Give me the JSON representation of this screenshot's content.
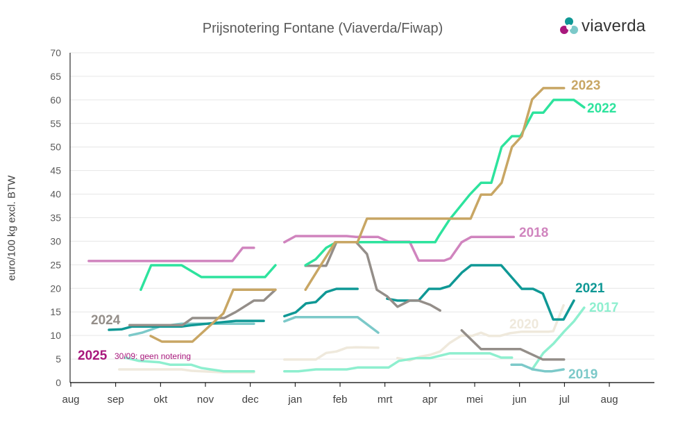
{
  "chart_data": {
    "type": "line",
    "title": "Prijsnotering Fontane (Viaverda/Fiwap)",
    "ylabel": "euro/100 kg excl. BTW",
    "xlabel": "",
    "ylim": [
      0,
      70
    ],
    "yticks": [
      "0",
      "5",
      "10",
      "15",
      "20",
      "25",
      "30",
      "35",
      "40",
      "45",
      "50",
      "55",
      "60",
      "65",
      "70"
    ],
    "x_unit": "months since August",
    "xlim": [
      0,
      13
    ],
    "xticks": [
      "aug",
      "sep",
      "okt",
      "nov",
      "dec",
      "jan",
      "feb",
      "mrt",
      "apr",
      "mei",
      "jun",
      "jul",
      "aug"
    ],
    "grid": true,
    "series": [
      {
        "name": "2018",
        "color": "#d084be",
        "segments": [
          [
            [
              0.4,
              25.8
            ],
            [
              3.6,
              25.8
            ],
            [
              3.83,
              28.6
            ],
            [
              4.08,
              28.6
            ]
          ],
          [
            [
              4.76,
              29.8
            ],
            [
              5.01,
              31.1
            ],
            [
              6.15,
              31.1
            ],
            [
              6.36,
              30.9
            ],
            [
              6.85,
              30.9
            ],
            [
              7.08,
              29.9
            ],
            [
              7.55,
              29.9
            ],
            [
              7.75,
              25.9
            ],
            [
              8.32,
              25.9
            ],
            [
              8.46,
              26.4
            ],
            [
              8.71,
              29.8
            ],
            [
              8.92,
              30.9
            ],
            [
              9.87,
              30.9
            ]
          ]
        ]
      },
      {
        "name": "2020",
        "color": "#efe9dc",
        "segments": [
          [
            [
              1.08,
              2.8
            ],
            [
              2.47,
              2.8
            ],
            [
              2.69,
              2.5
            ],
            [
              3.37,
              2.2
            ],
            [
              4.08,
              2.2
            ]
          ],
          [
            [
              4.76,
              4.9
            ],
            [
              5.46,
              4.9
            ],
            [
              5.69,
              6.3
            ],
            [
              5.92,
              6.6
            ],
            [
              6.15,
              7.4
            ],
            [
              6.36,
              7.5
            ],
            [
              6.85,
              7.4
            ]
          ],
          [
            [
              7.28,
              5.2
            ],
            [
              7.55,
              4.7
            ],
            [
              7.78,
              5.5
            ],
            [
              8.01,
              5.9
            ],
            [
              8.23,
              6.6
            ],
            [
              8.44,
              8.4
            ],
            [
              8.71,
              10.0
            ],
            [
              8.94,
              9.9
            ],
            [
              9.14,
              10.6
            ],
            [
              9.32,
              9.9
            ],
            [
              9.56,
              9.9
            ],
            [
              9.79,
              10.5
            ],
            [
              10.05,
              10.8
            ],
            [
              10.64,
              10.8
            ],
            [
              10.75,
              10.9
            ],
            [
              10.98,
              16.4
            ]
          ]
        ]
      },
      {
        "name": "2017",
        "color": "#8eefcf",
        "segments": [
          [
            [
              1.21,
              5.3
            ],
            [
              1.52,
              4.6
            ],
            [
              1.98,
              4.3
            ],
            [
              2.21,
              3.8
            ],
            [
              2.68,
              3.8
            ],
            [
              2.91,
              3.1
            ],
            [
              3.4,
              2.4
            ],
            [
              4.08,
              2.4
            ]
          ],
          [
            [
              4.76,
              2.4
            ],
            [
              5.07,
              2.4
            ],
            [
              5.46,
              2.8
            ],
            [
              6.15,
              2.8
            ],
            [
              6.39,
              3.2
            ],
            [
              7.08,
              3.2
            ],
            [
              7.31,
              4.6
            ],
            [
              7.7,
              5.2
            ],
            [
              8.01,
              5.2
            ],
            [
              8.44,
              6.2
            ],
            [
              9.34,
              6.2
            ],
            [
              9.59,
              5.3
            ],
            [
              9.83,
              5.3
            ]
          ],
          [
            [
              10.28,
              2.8
            ],
            [
              10.53,
              6.3
            ],
            [
              10.76,
              8.3
            ],
            [
              10.99,
              10.8
            ],
            [
              11.21,
              13.0
            ],
            [
              11.44,
              15.9
            ]
          ]
        ]
      },
      {
        "name": "2019",
        "color": "#7cc9c9",
        "segments": [
          [
            [
              1.31,
              10.0
            ],
            [
              1.59,
              10.6
            ],
            [
              1.98,
              11.9
            ],
            [
              2.47,
              12.5
            ],
            [
              4.08,
              12.5
            ]
          ],
          [
            [
              4.76,
              13.0
            ],
            [
              5.01,
              13.9
            ],
            [
              6.39,
              13.9
            ],
            [
              6.85,
              10.6
            ]
          ],
          [
            [
              9.82,
              3.8
            ],
            [
              10.05,
              3.8
            ],
            [
              10.3,
              2.8
            ],
            [
              10.56,
              2.4
            ],
            [
              10.72,
              2.4
            ],
            [
              10.98,
              2.8
            ]
          ]
        ]
      },
      {
        "name": "2021",
        "color": "#0f9895",
        "segments": [
          [
            [
              0.85,
              11.2
            ],
            [
              1.13,
              11.3
            ],
            [
              1.36,
              11.9
            ],
            [
              2.47,
              11.9
            ],
            [
              2.71,
              12.2
            ],
            [
              3.68,
              13.1
            ],
            [
              4.3,
              13.1
            ]
          ],
          [
            [
              4.76,
              14.1
            ],
            [
              5.01,
              14.9
            ],
            [
              5.24,
              16.8
            ],
            [
              5.46,
              17.1
            ],
            [
              5.69,
              19.2
            ],
            [
              5.92,
              19.9
            ],
            [
              6.39,
              19.9
            ]
          ],
          [
            [
              7.05,
              17.8
            ],
            [
              7.28,
              17.4
            ],
            [
              7.75,
              17.4
            ],
            [
              7.98,
              19.9
            ],
            [
              8.23,
              19.9
            ],
            [
              8.44,
              20.5
            ],
            [
              8.72,
              23.4
            ],
            [
              8.92,
              24.9
            ],
            [
              9.59,
              24.9
            ],
            [
              10.05,
              19.9
            ],
            [
              10.3,
              19.9
            ],
            [
              10.52,
              18.9
            ],
            [
              10.75,
              13.4
            ],
            [
              10.98,
              13.4
            ],
            [
              11.21,
              17.4
            ]
          ]
        ]
      },
      {
        "name": "2024",
        "color": "#948e89",
        "segments": [
          [
            [
              1.31,
              12.2
            ],
            [
              2.49,
              12.2
            ],
            [
              2.71,
              13.7
            ],
            [
              3.42,
              13.7
            ],
            [
              3.68,
              15.0
            ],
            [
              4.08,
              17.4
            ],
            [
              4.3,
              17.4
            ],
            [
              4.56,
              19.7
            ]
          ],
          [
            [
              5.23,
              24.8
            ],
            [
              5.69,
              24.8
            ],
            [
              5.92,
              29.8
            ],
            [
              6.36,
              29.8
            ],
            [
              6.6,
              27.3
            ],
            [
              6.82,
              19.7
            ],
            [
              7.05,
              18.3
            ],
            [
              7.28,
              16.1
            ],
            [
              7.55,
              17.4
            ],
            [
              7.75,
              17.4
            ],
            [
              8.01,
              16.5
            ],
            [
              8.23,
              15.3
            ]
          ],
          [
            [
              8.71,
              11.1
            ],
            [
              9.14,
              7.1
            ],
            [
              10.02,
              7.1
            ],
            [
              10.52,
              4.9
            ],
            [
              10.99,
              4.9
            ]
          ]
        ]
      },
      {
        "name": "2022",
        "color": "#2de39d",
        "segments": [
          [
            [
              1.56,
              19.7
            ],
            [
              1.79,
              24.9
            ],
            [
              2.47,
              24.9
            ],
            [
              2.91,
              22.4
            ],
            [
              4.33,
              22.4
            ],
            [
              4.56,
              24.9
            ]
          ],
          [
            [
              5.23,
              24.9
            ],
            [
              5.46,
              26.2
            ],
            [
              5.69,
              28.6
            ],
            [
              5.92,
              29.8
            ],
            [
              8.12,
              29.8
            ],
            [
              8.2,
              31.1
            ],
            [
              8.44,
              34.6
            ],
            [
              8.89,
              39.9
            ],
            [
              9.14,
              42.4
            ],
            [
              9.37,
              42.4
            ],
            [
              9.6,
              50.0
            ],
            [
              9.83,
              52.3
            ],
            [
              10.02,
              52.3
            ],
            [
              10.3,
              57.3
            ],
            [
              10.53,
              57.3
            ],
            [
              10.76,
              60.0
            ],
            [
              11.21,
              60.0
            ],
            [
              11.44,
              58.4
            ]
          ]
        ]
      },
      {
        "name": "2023",
        "color": "#c8a664",
        "segments": [
          [
            [
              1.78,
              9.9
            ],
            [
              2.03,
              8.7
            ],
            [
              2.71,
              8.7
            ],
            [
              3.4,
              14.7
            ],
            [
              3.62,
              19.7
            ],
            [
              4.56,
              19.7
            ]
          ],
          [
            [
              5.23,
              19.7
            ],
            [
              5.89,
              29.8
            ],
            [
              6.39,
              29.8
            ],
            [
              6.6,
              34.8
            ],
            [
              8.91,
              34.8
            ],
            [
              9.14,
              39.9
            ],
            [
              9.37,
              39.9
            ],
            [
              9.6,
              42.4
            ],
            [
              9.83,
              50.0
            ],
            [
              10.05,
              52.3
            ],
            [
              10.28,
              60.1
            ],
            [
              10.53,
              62.5
            ],
            [
              10.99,
              62.5
            ]
          ]
        ]
      }
    ],
    "series_labels": {
      "2023": "2023",
      "2022": "2022",
      "2018": "2018",
      "2021": "2021",
      "2017": "2017",
      "2020": "2020",
      "2019": "2019",
      "2024": "2024",
      "2025": "2025"
    },
    "annotation": "30/09: geen notering",
    "colors": {
      "2025": "#a8187c"
    }
  },
  "logo": {
    "text": "viaverda",
    "colors": [
      "#0f9895",
      "#a8187c",
      "#7cc9c9"
    ]
  }
}
